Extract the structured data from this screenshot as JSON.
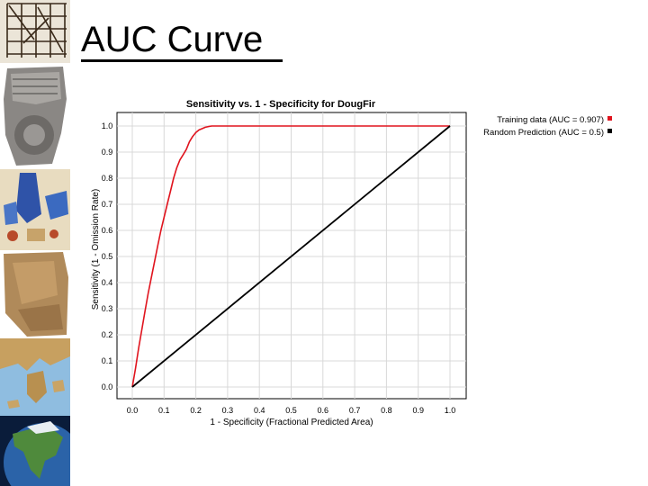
{
  "slide": {
    "title": "AUC Curve"
  },
  "sidebar": {
    "images": [
      "grid-map",
      "cuneiform-tablet",
      "medieval-map",
      "clay-fragment",
      "greece-relief-map",
      "north-america-satellite"
    ]
  },
  "colors": {
    "training": "#e0141e",
    "random": "#000000",
    "grid": "#d8d8d8",
    "axis": "#000000"
  },
  "chart_data": {
    "type": "line",
    "title": "Sensitivity vs. 1 - Specificity for DougFir",
    "xlabel": "1 - Specificity (Fractional Predicted Area)",
    "ylabel": "Sensitivity (1 - Omission Rate)",
    "xlim": [
      0.0,
      1.0
    ],
    "ylim": [
      0.0,
      1.0
    ],
    "xticks": [
      "0.0",
      "0.1",
      "0.2",
      "0.3",
      "0.4",
      "0.5",
      "0.6",
      "0.7",
      "0.8",
      "0.9",
      "1.0"
    ],
    "yticks": [
      "0.0",
      "0.1",
      "0.2",
      "0.3",
      "0.4",
      "0.5",
      "0.6",
      "0.7",
      "0.8",
      "0.9",
      "1.0"
    ],
    "grid": true,
    "legend_position": "right-top",
    "series": [
      {
        "name": "Training data (AUC = 0.907)",
        "color": "#e0141e",
        "x": [
          0.0,
          0.01,
          0.02,
          0.03,
          0.04,
          0.05,
          0.06,
          0.07,
          0.08,
          0.09,
          0.1,
          0.11,
          0.12,
          0.13,
          0.14,
          0.15,
          0.16,
          0.17,
          0.18,
          0.19,
          0.2,
          0.21,
          0.22,
          0.23,
          0.24,
          0.25,
          0.27,
          0.3,
          0.4,
          0.5,
          0.6,
          0.7,
          0.8,
          0.9,
          1.0
        ],
        "y": [
          0.0,
          0.07,
          0.15,
          0.22,
          0.29,
          0.36,
          0.42,
          0.48,
          0.54,
          0.6,
          0.65,
          0.7,
          0.75,
          0.8,
          0.84,
          0.87,
          0.89,
          0.91,
          0.94,
          0.96,
          0.975,
          0.985,
          0.99,
          0.995,
          0.998,
          1.0,
          1.0,
          1.0,
          1.0,
          1.0,
          1.0,
          1.0,
          1.0,
          1.0,
          1.0
        ]
      },
      {
        "name": "Random Prediction (AUC = 0.5)",
        "color": "#000000",
        "x": [
          0.0,
          1.0
        ],
        "y": [
          0.0,
          1.0
        ]
      }
    ]
  }
}
